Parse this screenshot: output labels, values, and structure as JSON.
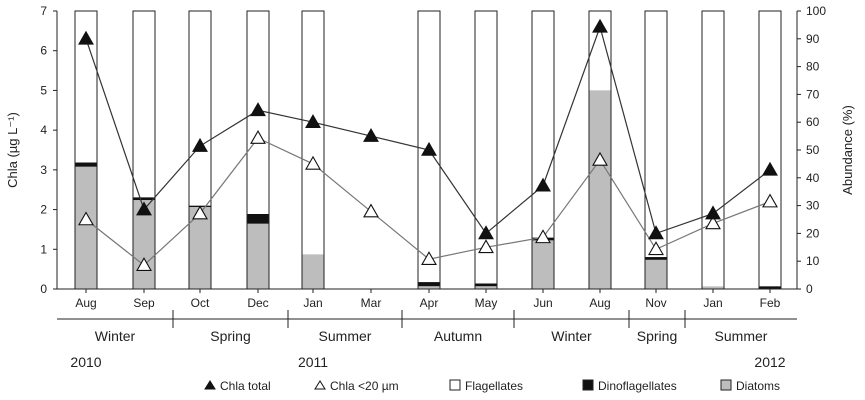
{
  "chart_data": {
    "type": "bar",
    "bar_mode": "stacked",
    "categories": [
      "Aug",
      "Sep",
      "Oct",
      "Dec",
      "Jan",
      "Mar",
      "Apr",
      "May",
      "Jun",
      "Aug",
      "Nov",
      "Jan",
      "Feb"
    ],
    "bars_present": [
      true,
      true,
      true,
      true,
      true,
      false,
      true,
      true,
      true,
      true,
      true,
      true,
      true
    ],
    "series": [
      {
        "name": "Diatoms",
        "kind": "bar",
        "axis": "right",
        "color": "#bdbdbd",
        "values": [
          44,
          32,
          29.5,
          23.5,
          12.5,
          null,
          1,
          1,
          17.5,
          71.5,
          10.5,
          1,
          0
        ]
      },
      {
        "name": "Dinoflagellates",
        "kind": "bar",
        "axis": "right",
        "color": "#111111",
        "values": [
          1.5,
          1,
          0.5,
          3.5,
          0,
          null,
          1.5,
          1,
          1,
          0,
          1,
          0,
          1
        ]
      },
      {
        "name": "Flagellates",
        "kind": "bar",
        "axis": "right",
        "color": "#ffffff",
        "values": [
          54.5,
          67,
          70,
          73,
          87.5,
          null,
          97.5,
          98,
          81.5,
          28.5,
          88.5,
          99,
          99
        ]
      },
      {
        "name": "Chla total",
        "kind": "line",
        "axis": "left",
        "marker": "filled-triangle",
        "values": [
          6.3,
          2.0,
          3.6,
          4.5,
          4.2,
          3.85,
          3.5,
          1.4,
          2.6,
          6.6,
          1.4,
          1.9,
          3.0
        ]
      },
      {
        "name": "Chla <20 µm",
        "kind": "line",
        "axis": "left",
        "marker": "open-triangle",
        "values": [
          1.75,
          0.6,
          1.9,
          3.8,
          3.15,
          1.95,
          0.75,
          1.05,
          1.3,
          3.25,
          1.0,
          1.65,
          2.2
        ]
      }
    ],
    "ylabel": "Chla (µg L⁻¹)",
    "ylabel_right": "Abundance (%)",
    "ylim": [
      0,
      7
    ],
    "ylim_right": [
      0,
      100
    ],
    "yticks": [
      "0",
      "1",
      "2",
      "3",
      "4",
      "5",
      "6",
      "7"
    ],
    "yticks_right": [
      "0",
      "10",
      "20",
      "30",
      "40",
      "50",
      "60",
      "70",
      "80",
      "90",
      "100"
    ],
    "seasons": [
      {
        "label": "Winter",
        "span": [
          0,
          1
        ]
      },
      {
        "label": "Spring",
        "span": [
          2,
          3
        ]
      },
      {
        "label": "Summer",
        "span": [
          4,
          5
        ]
      },
      {
        "label": "Autumn",
        "span": [
          6,
          7
        ]
      },
      {
        "label": "Winter",
        "span": [
          8,
          9
        ]
      },
      {
        "label": "Spring",
        "span": [
          10,
          10
        ]
      },
      {
        "label": "Summer",
        "span": [
          11,
          12
        ]
      }
    ],
    "years": [
      {
        "label": "2010",
        "at": 0
      },
      {
        "label": "2011",
        "at": 4
      },
      {
        "label": "2012",
        "at": 12
      }
    ],
    "legend": {
      "position": "bottom",
      "items": [
        {
          "label": "Chla total",
          "symbol": "filled-triangle"
        },
        {
          "label": "Chla <20 µm",
          "symbol": "open-triangle"
        },
        {
          "label": "Flagellates",
          "symbol": "white-box"
        },
        {
          "label": "Dinoflagellates",
          "symbol": "black-box"
        },
        {
          "label": "Diatoms",
          "symbol": "grey-box"
        }
      ]
    },
    "grid": false
  }
}
